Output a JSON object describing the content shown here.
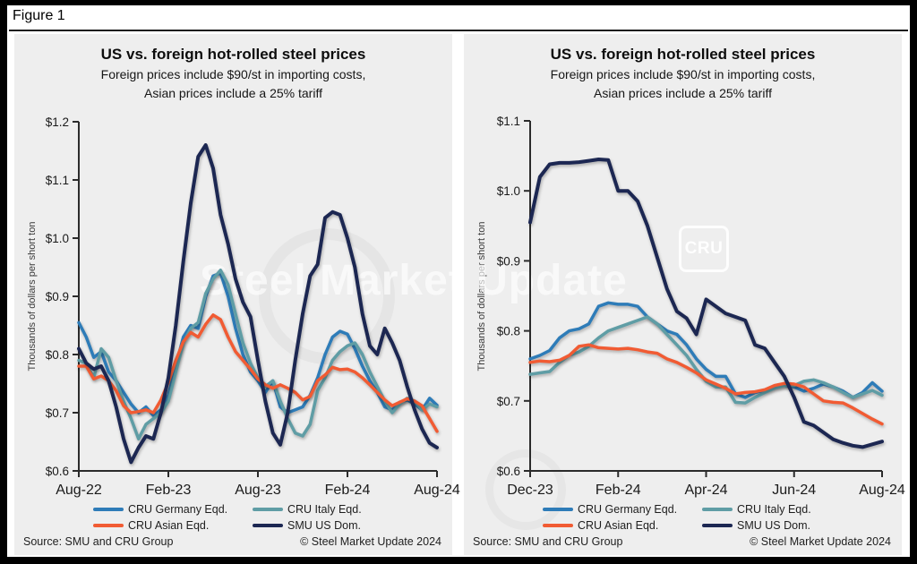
{
  "figure_label": "Figure 1",
  "source": "Source: SMU and CRU Group",
  "copyright": "© Steel Market Update 2024",
  "watermark": {
    "text": "Steel Market Update",
    "badge": "CRU"
  },
  "colors": {
    "frame": "#000000",
    "page_bg": "#ffffff",
    "panel_bg": "#eeeeee",
    "axis": "#2b2b2b",
    "germany": "#2e7cb8",
    "italy": "#5f9da5",
    "asian": "#f15b33",
    "us_dom": "#1c2752"
  },
  "chart_data": [
    {
      "type": "line",
      "title": "US vs. foreign hot-rolled steel prices",
      "subtitle_line1": "Foreign prices include $90/st in importing costs,",
      "subtitle_line2": "Asian prices include a 25% tariff",
      "ylabel": "Thousands of dollars per short ton",
      "ylim": [
        0.6,
        1.2
      ],
      "ytick_step": 0.1,
      "ytick_prefix": "$",
      "grid": false,
      "legend_position": "bottom",
      "x_tick_labels": [
        "Aug-22",
        "Feb-23",
        "Aug-23",
        "Feb-24",
        "Aug-24"
      ],
      "series": [
        {
          "name": "CRU Germany Eqd.",
          "color_key": "germany",
          "values": [
            0.855,
            0.83,
            0.795,
            0.805,
            0.77,
            0.755,
            0.735,
            0.715,
            0.7,
            0.71,
            0.695,
            0.705,
            0.73,
            0.78,
            0.83,
            0.85,
            0.845,
            0.9,
            0.935,
            0.94,
            0.9,
            0.845,
            0.8,
            0.77,
            0.755,
            0.735,
            0.755,
            0.71,
            0.7,
            0.705,
            0.71,
            0.73,
            0.76,
            0.8,
            0.83,
            0.84,
            0.835,
            0.81,
            0.78,
            0.755,
            0.735,
            0.71,
            0.705,
            0.718,
            0.722,
            0.715,
            0.705,
            0.725,
            0.713
          ]
        },
        {
          "name": "CRU Italy Eqd.",
          "color_key": "italy",
          "values": [
            0.79,
            0.785,
            0.76,
            0.81,
            0.795,
            0.755,
            0.72,
            0.69,
            0.655,
            0.68,
            0.69,
            0.7,
            0.72,
            0.77,
            0.82,
            0.845,
            0.855,
            0.905,
            0.93,
            0.945,
            0.92,
            0.87,
            0.82,
            0.785,
            0.76,
            0.745,
            0.755,
            0.72,
            0.69,
            0.665,
            0.66,
            0.68,
            0.738,
            0.76,
            0.79,
            0.805,
            0.815,
            0.82,
            0.8,
            0.77,
            0.745,
            0.72,
            0.7,
            0.715,
            0.725,
            0.72,
            0.705,
            0.715,
            0.71
          ]
        },
        {
          "name": "CRU Asian Eqd.",
          "color_key": "asian",
          "values": [
            0.78,
            0.78,
            0.758,
            0.763,
            0.755,
            0.738,
            0.712,
            0.7,
            0.702,
            0.705,
            0.7,
            0.722,
            0.752,
            0.79,
            0.822,
            0.838,
            0.83,
            0.852,
            0.868,
            0.86,
            0.83,
            0.805,
            0.79,
            0.775,
            0.758,
            0.748,
            0.742,
            0.748,
            0.742,
            0.735,
            0.722,
            0.728,
            0.755,
            0.765,
            0.778,
            0.774,
            0.775,
            0.77,
            0.76,
            0.748,
            0.735,
            0.722,
            0.712,
            0.718,
            0.724,
            0.72,
            0.712,
            0.69,
            0.668
          ]
        },
        {
          "name": "SMU US Dom.",
          "color_key": "us_dom",
          "width": 4,
          "values": [
            0.81,
            0.785,
            0.775,
            0.78,
            0.755,
            0.71,
            0.655,
            0.615,
            0.64,
            0.66,
            0.655,
            0.7,
            0.76,
            0.85,
            0.96,
            1.06,
            1.14,
            1.16,
            1.12,
            1.04,
            0.99,
            0.93,
            0.89,
            0.865,
            0.79,
            0.72,
            0.665,
            0.645,
            0.7,
            0.79,
            0.87,
            0.935,
            0.955,
            1.035,
            1.045,
            1.04,
            1.0,
            0.95,
            0.87,
            0.815,
            0.8,
            0.845,
            0.82,
            0.79,
            0.745,
            0.705,
            0.672,
            0.648,
            0.64
          ]
        }
      ]
    },
    {
      "type": "line",
      "title": "US vs. foreign hot-rolled steel prices",
      "subtitle_line1": "Foreign prices include $90/st in importing costs,",
      "subtitle_line2": "Asian prices include a 25% tariff",
      "ylabel": "Thousands of dollars per short ton",
      "ylim": [
        0.6,
        1.1
      ],
      "ytick_step": 0.1,
      "ytick_prefix": "$",
      "grid": false,
      "legend_position": "bottom",
      "x_tick_labels": [
        "Dec-23",
        "Feb-24",
        "Apr-24",
        "Jun-24",
        "Aug-24"
      ],
      "series": [
        {
          "name": "CRU Germany Eqd.",
          "color_key": "germany",
          "values": [
            0.76,
            0.765,
            0.772,
            0.79,
            0.8,
            0.803,
            0.81,
            0.835,
            0.84,
            0.838,
            0.838,
            0.835,
            0.82,
            0.81,
            0.8,
            0.795,
            0.78,
            0.76,
            0.745,
            0.735,
            0.735,
            0.71,
            0.705,
            0.712,
            0.715,
            0.72,
            0.722,
            0.72,
            0.714,
            0.718,
            0.724,
            0.72,
            0.714,
            0.705,
            0.712,
            0.726,
            0.714
          ]
        },
        {
          "name": "CRU Italy Eqd.",
          "color_key": "italy",
          "values": [
            0.738,
            0.74,
            0.742,
            0.755,
            0.765,
            0.77,
            0.778,
            0.79,
            0.8,
            0.805,
            0.81,
            0.815,
            0.82,
            0.81,
            0.795,
            0.78,
            0.765,
            0.745,
            0.728,
            0.72,
            0.72,
            0.698,
            0.697,
            0.705,
            0.712,
            0.718,
            0.722,
            0.722,
            0.728,
            0.73,
            0.726,
            0.72,
            0.712,
            0.705,
            0.71,
            0.715,
            0.708
          ]
        },
        {
          "name": "CRU Asian Eqd.",
          "color_key": "asian",
          "values": [
            0.755,
            0.757,
            0.756,
            0.758,
            0.765,
            0.778,
            0.78,
            0.776,
            0.775,
            0.774,
            0.775,
            0.773,
            0.77,
            0.768,
            0.76,
            0.755,
            0.748,
            0.74,
            0.73,
            0.724,
            0.718,
            0.71,
            0.712,
            0.713,
            0.716,
            0.722,
            0.725,
            0.724,
            0.72,
            0.71,
            0.7,
            0.698,
            0.697,
            0.69,
            0.682,
            0.674,
            0.667
          ]
        },
        {
          "name": "SMU US Dom.",
          "color_key": "us_dom",
          "width": 4,
          "values": [
            0.955,
            1.02,
            1.038,
            1.04,
            1.04,
            1.041,
            1.043,
            1.045,
            1.044,
            1.0,
            1.0,
            0.985,
            0.95,
            0.905,
            0.86,
            0.828,
            0.818,
            0.795,
            0.845,
            0.835,
            0.825,
            0.82,
            0.815,
            0.78,
            0.775,
            0.755,
            0.735,
            0.705,
            0.67,
            0.665,
            0.655,
            0.645,
            0.64,
            0.636,
            0.634,
            0.638,
            0.642
          ]
        }
      ]
    }
  ]
}
